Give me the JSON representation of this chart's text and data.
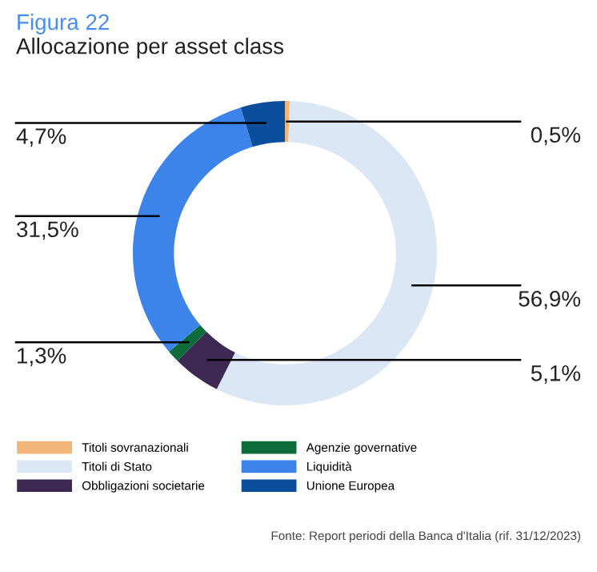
{
  "chart_data": {
    "type": "donut",
    "title": "Figura 22",
    "subtitle": "Allocazione per asset class",
    "categories": [
      "Titoli sovranazionali",
      "Titoli di Stato",
      "Obbligazioni societarie",
      "Agenzie governative",
      "Liquidità",
      "Unione Europea"
    ],
    "values": [
      0.5,
      56.9,
      5.1,
      1.3,
      31.5,
      4.7
    ],
    "value_labels": [
      "0,5%",
      "56,9%",
      "5,1%",
      "1,3%",
      "31,5%",
      "4,7%"
    ],
    "colors": [
      "#f2b679",
      "#dce7f6",
      "#3d2952",
      "#0e6b3a",
      "#3c84ea",
      "#0b4f9c"
    ],
    "legend": "bottom",
    "annotations": [
      "Fonte: Report periodi della Banca d'Italia (rif. 31/12/2023)"
    ]
  }
}
